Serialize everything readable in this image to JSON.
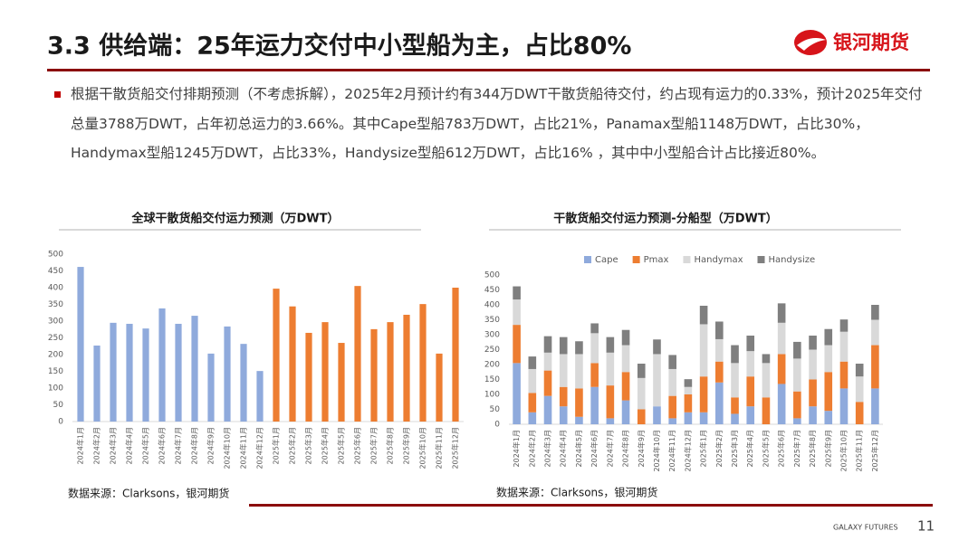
{
  "header": {
    "title": "3.3 供给端：25年运力交付中小型船为主，占比80%",
    "logo": "银河期货"
  },
  "bullet": "根据干散货船交付排期预测（不考虑拆解），2025年2月预计约有344万DWT干散货船待交付，约占现有运力的0.33%，预计2025年交付总量3788万DWT，占年初总运力的3.66%。其中Cape型船783万DWT，占比21%，Panamax型船1148万DWT，占比30%，Handymax型船1245万DWT，占比33%，Handysize型船612万DWT，占比16% ，其中中小型船合计占比接近80%。",
  "chart_data": [
    {
      "type": "bar",
      "title": "全球干散货船交付运力预测（万DWT）",
      "categories": [
        "2024年1月",
        "2024年2月",
        "2024年3月",
        "2024年4月",
        "2024年5月",
        "2024年6月",
        "2024年7月",
        "2024年8月",
        "2024年9月",
        "2024年10月",
        "2024年11月",
        "2024年12月",
        "2025年1月",
        "2025年2月",
        "2025年3月",
        "2025年4月",
        "2025年5月",
        "2025年6月",
        "2025年7月",
        "2025年8月",
        "2025年9月",
        "2025年10月",
        "2025年11月",
        "2025年12月"
      ],
      "values": [
        462,
        227,
        295,
        292,
        278,
        338,
        292,
        316,
        203,
        284,
        232,
        151,
        397,
        344,
        265,
        297,
        235,
        405,
        276,
        297,
        319,
        351,
        203,
        400
      ],
      "colors": [
        "#8faadc",
        "#8faadc",
        "#8faadc",
        "#8faadc",
        "#8faadc",
        "#8faadc",
        "#8faadc",
        "#8faadc",
        "#8faadc",
        "#8faadc",
        "#8faadc",
        "#8faadc",
        "#ed7d31",
        "#ed7d31",
        "#ed7d31",
        "#ed7d31",
        "#ed7d31",
        "#ed7d31",
        "#ed7d31",
        "#ed7d31",
        "#ed7d31",
        "#ed7d31",
        "#ed7d31",
        "#ed7d31"
      ],
      "ylim": [
        0,
        500
      ],
      "yticks": [
        0,
        50,
        100,
        150,
        200,
        250,
        300,
        350,
        400,
        450,
        500
      ],
      "grid": false,
      "source": "数据来源：Clarksons，银河期货"
    },
    {
      "type": "stacked_bar",
      "title": "干散货船交付运力预测-分船型（万DWT）",
      "categories": [
        "2024年1月",
        "2024年2月",
        "2024年3月",
        "2024年4月",
        "2024年5月",
        "2024年6月",
        "2024年7月",
        "2024年8月",
        "2024年9月",
        "2024年10月",
        "2024年11月",
        "2024年12月",
        "2025年1月",
        "2025年2月",
        "2025年3月",
        "2025年4月",
        "2025年5月",
        "2025年6月",
        "2025年7月",
        "2025年8月",
        "2025年9月",
        "2025年10月",
        "2025年11月",
        "2025年12月"
      ],
      "series": [
        {
          "name": "Cape",
          "color": "#8faadc",
          "values": [
            205,
            40,
            95,
            60,
            25,
            125,
            20,
            80,
            0,
            60,
            20,
            40,
            40,
            140,
            35,
            60,
            0,
            135,
            20,
            60,
            45,
            120,
            0,
            120
          ]
        },
        {
          "name": "Pmax",
          "color": "#ed7d31",
          "values": [
            128,
            65,
            85,
            65,
            95,
            80,
            110,
            95,
            50,
            0,
            75,
            60,
            120,
            70,
            55,
            100,
            90,
            100,
            90,
            90,
            130,
            90,
            75,
            145
          ]
        },
        {
          "name": "Handymax",
          "color": "#d9d9d9",
          "values": [
            85,
            80,
            60,
            110,
            115,
            100,
            110,
            90,
            105,
            175,
            90,
            25,
            175,
            75,
            115,
            85,
            115,
            105,
            110,
            100,
            90,
            100,
            85,
            85
          ]
        },
        {
          "name": "Handysize",
          "color": "#7f7f7f",
          "values": [
            44,
            42,
            55,
            57,
            43,
            33,
            52,
            51,
            48,
            49,
            47,
            26,
            62,
            59,
            60,
            52,
            30,
            65,
            56,
            47,
            54,
            41,
            43,
            50
          ]
        }
      ],
      "ylim": [
        0,
        500
      ],
      "yticks": [
        0,
        50,
        100,
        150,
        200,
        250,
        300,
        350,
        400,
        450,
        500
      ],
      "grid": false,
      "legend": "top",
      "source": "数据来源：Clarksons，银河期货"
    }
  ],
  "footer": {
    "brand": "GALAXY FUTURES",
    "page": "11"
  }
}
